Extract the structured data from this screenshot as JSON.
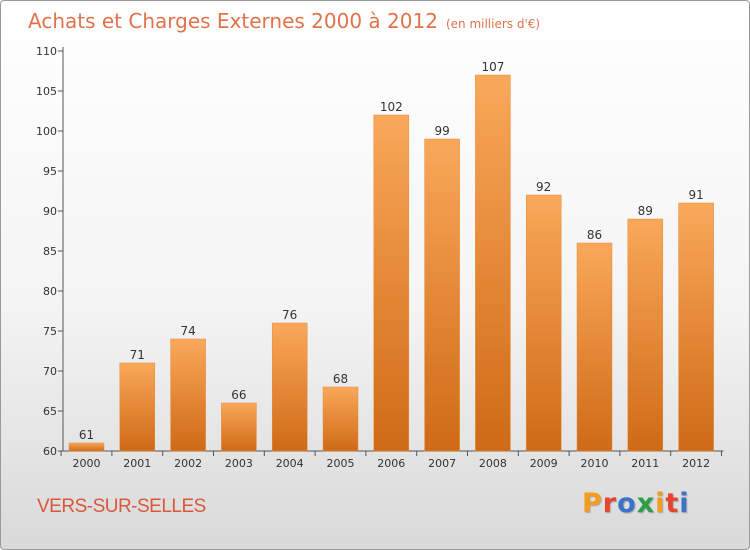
{
  "header": {
    "title": "Achats et Charges Externes 2000 à 2012",
    "unit": "(en milliers d'€)"
  },
  "footer": {
    "commune": "VERS-SUR-SELLES",
    "logo": "Proxiti"
  },
  "colors": {
    "title": "#e0734a",
    "bar_light": "#f9a85a",
    "bar_dark": "#cf6a16",
    "commune": "#d9573a",
    "logo_letters": [
      "#f39c1f",
      "#e8432e",
      "#3a73c9",
      "#2e9e46",
      "#f39c1f",
      "#e8432e",
      "#3a73c9"
    ]
  },
  "chart_data": {
    "type": "bar",
    "title": "Achats et Charges Externes 2000 à 2012",
    "subtitle": "(en milliers d'€)",
    "xlabel": "",
    "ylabel": "",
    "categories": [
      "2000",
      "2001",
      "2002",
      "2003",
      "2004",
      "2005",
      "2006",
      "2007",
      "2008",
      "2009",
      "2010",
      "2011",
      "2012"
    ],
    "values": [
      61,
      71,
      74,
      66,
      76,
      68,
      102,
      99,
      107,
      92,
      86,
      89,
      91
    ],
    "ylim": [
      60,
      110
    ],
    "yticks": [
      60,
      65,
      70,
      75,
      80,
      85,
      90,
      95,
      100,
      105,
      110
    ],
    "grid": false,
    "legend": "none"
  }
}
